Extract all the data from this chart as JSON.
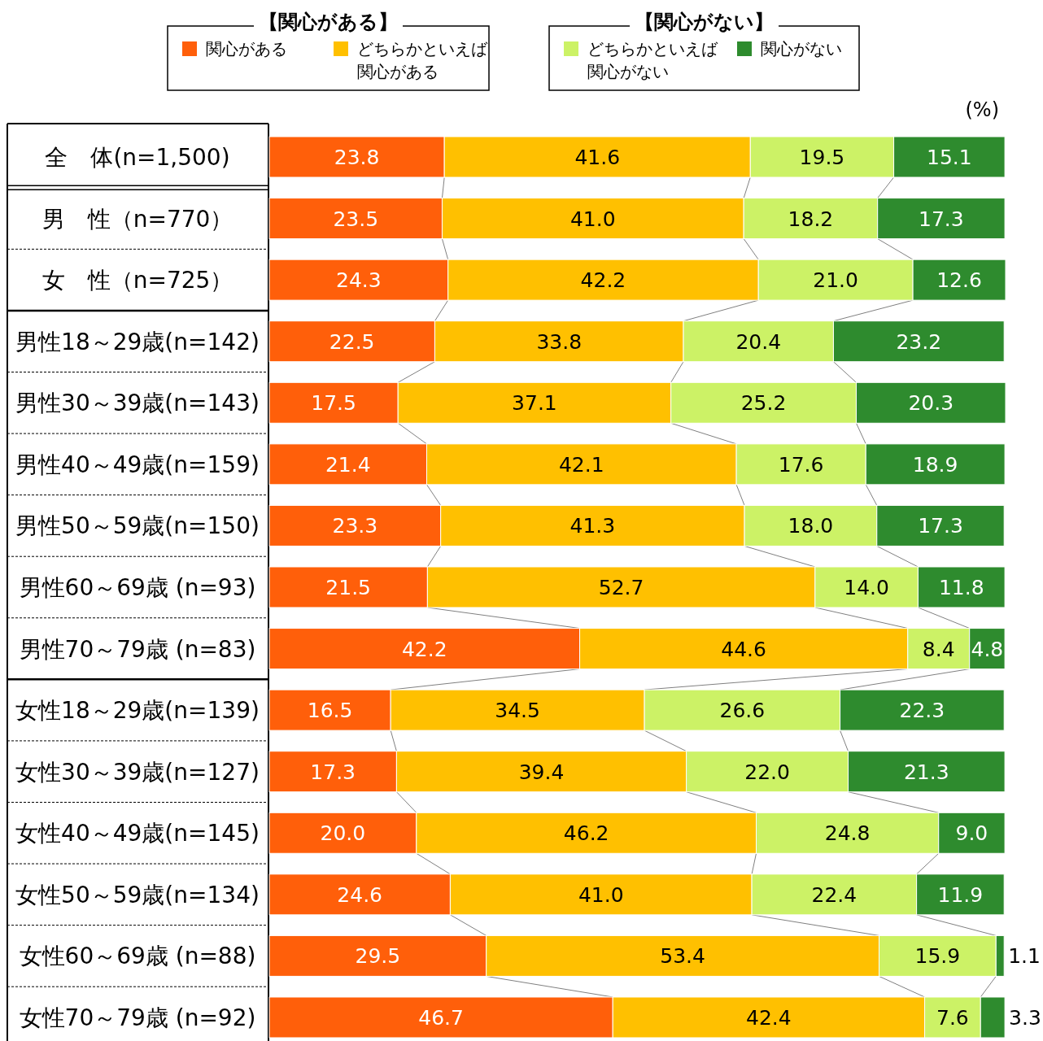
{
  "chart_data": {
    "type": "bar",
    "orientation": "horizontal",
    "stacked": true,
    "legend": "top",
    "categories": [
      "全　体(n=1,500)",
      "男　性（n=770）",
      "女　性（n=725）",
      "男性18～29歳(n=142)",
      "男性30～39歳(n=143)",
      "男性40～49歳(n=159)",
      "男性50～59歳(n=150)",
      "男性60～69歳 (n=93)",
      "男性70～79歳 (n=83)",
      "女性18～29歳(n=139)",
      "女性30～39歳(n=127)",
      "女性40～49歳(n=145)",
      "女性50～59歳(n=134)",
      "女性60～69歳 (n=88)",
      "女性70～79歳 (n=92)"
    ],
    "series": [
      {
        "name": "関心がある",
        "color": "#ff5f0a",
        "values": [
          23.8,
          23.5,
          24.3,
          22.5,
          17.5,
          21.4,
          23.3,
          21.5,
          42.2,
          16.5,
          17.3,
          20.0,
          24.6,
          29.5,
          46.7
        ],
        "value_labels": [
          "23.8",
          "23.5",
          "24.3",
          "22.5",
          "17.5",
          "21.4",
          "23.3",
          "21.5",
          "42.2",
          "16.5",
          "17.3",
          "20.0",
          "24.6",
          "29.5",
          "46.7"
        ]
      },
      {
        "name": "どちらかといえば関心がある",
        "color": "#ffc000",
        "values": [
          41.6,
          41.0,
          42.2,
          33.8,
          37.1,
          42.1,
          41.3,
          52.7,
          44.6,
          34.5,
          39.4,
          46.2,
          41.0,
          53.4,
          42.4
        ],
        "value_labels": [
          "41.6",
          "41.0",
          "42.2",
          "33.8",
          "37.1",
          "42.1",
          "41.3",
          "52.7",
          "44.6",
          "34.5",
          "39.4",
          "46.2",
          "41.0",
          "53.4",
          "42.4"
        ]
      },
      {
        "name": "どちらかといえば関心がない",
        "color": "#ccf266",
        "values": [
          19.5,
          18.2,
          21.0,
          20.4,
          25.2,
          17.6,
          18.0,
          14.0,
          8.4,
          26.6,
          22.0,
          24.8,
          22.4,
          15.9,
          7.6
        ],
        "value_labels": [
          "19.5",
          "18.2",
          "21.0",
          "20.4",
          "25.2",
          "17.6",
          "18.0",
          "14.0",
          "8.4",
          "26.6",
          "22.0",
          "24.8",
          "22.4",
          "15.9",
          "7.6"
        ]
      },
      {
        "name": "関心がない",
        "color": "#2e8b2e",
        "values": [
          15.1,
          17.3,
          12.6,
          23.2,
          20.3,
          18.9,
          17.3,
          11.8,
          4.8,
          22.3,
          21.3,
          9.0,
          11.9,
          1.1,
          3.3
        ],
        "value_labels": [
          "15.1",
          "17.3",
          "12.6",
          "23.2",
          "20.3",
          "18.9",
          "17.3",
          "11.8",
          "4.8",
          "22.3",
          "21.3",
          "9.0",
          "11.9",
          "1.1",
          "3.3"
        ]
      }
    ],
    "annotations": [
      "【関心がある】",
      "【関心がない】",
      "(%)"
    ]
  }
}
